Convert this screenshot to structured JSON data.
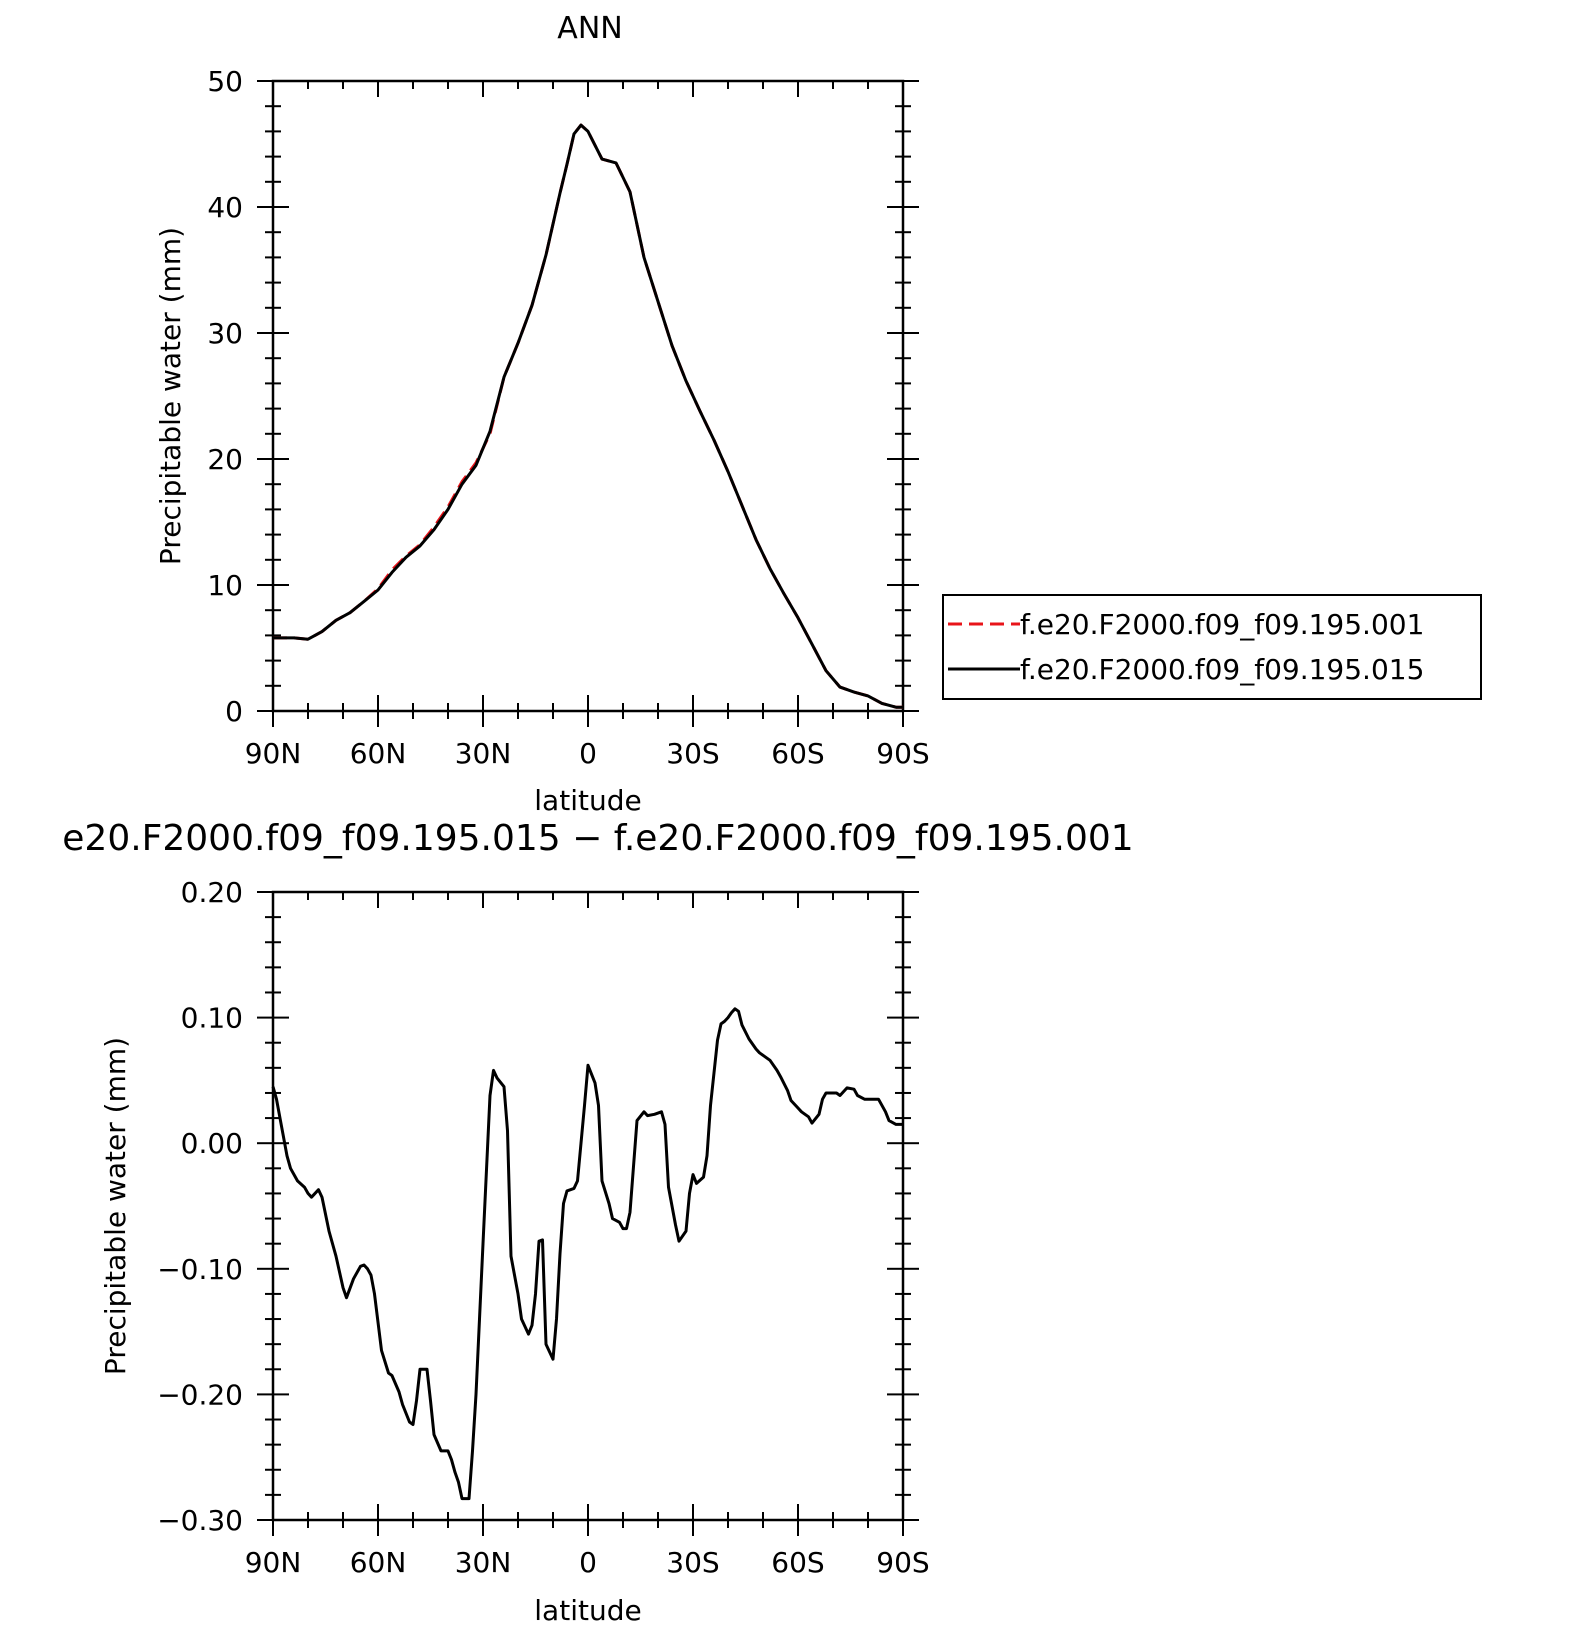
{
  "chart_data": [
    {
      "type": "line",
      "title": "ANN",
      "xlabel": "latitude",
      "ylabel": "Precipitable water (mm)",
      "x_ticks": [
        "90N",
        "60N",
        "30N",
        "0",
        "30S",
        "60S",
        "90S"
      ],
      "y_ticks": [
        "0",
        "10",
        "20",
        "30",
        "40",
        "50"
      ],
      "xlim": [
        -90,
        90
      ],
      "ylim": [
        0,
        50
      ],
      "x_direction": "90N to 90S (left to right)",
      "legend_position": "right",
      "series": [
        {
          "name": "f.e20.F2000.f09_f09.195.001",
          "color": "#e8141a",
          "dash": "dashed",
          "x": [
            -90,
            -84,
            -80,
            -76,
            -72,
            -68,
            -64,
            -60,
            -56,
            -52,
            -48,
            -44,
            -40,
            -36,
            -32,
            -28,
            -24,
            -20,
            -16,
            -12,
            -8,
            -6,
            -4,
            -2,
            0,
            4,
            8,
            12,
            16,
            20,
            24,
            28,
            32,
            36,
            40,
            44,
            48,
            52,
            56,
            60,
            64,
            68,
            72,
            76,
            80,
            84,
            88,
            90
          ],
          "y": [
            5.8,
            5.8,
            5.7,
            6.3,
            7.2,
            7.8,
            8.7,
            9.7,
            11.2,
            12.3,
            13.2,
            14.6,
            16.2,
            18.2,
            19.7,
            22.0,
            26.5,
            29.2,
            32.2,
            36.2,
            41.1,
            43.4,
            45.8,
            46.5,
            46.0,
            43.8,
            43.5,
            41.2,
            36.0,
            32.5,
            29.0,
            26.2,
            23.8,
            21.5,
            19.0,
            16.3,
            13.6,
            11.3,
            9.3,
            7.4,
            5.3,
            3.2,
            1.9,
            1.5,
            1.2,
            0.6,
            0.3,
            0.3
          ]
        },
        {
          "name": "f.e20.F2000.f09_f09.195.015",
          "color": "#000000",
          "dash": "solid",
          "x": [
            -90,
            -84,
            -80,
            -76,
            -72,
            -68,
            -64,
            -60,
            -56,
            -52,
            -48,
            -44,
            -40,
            -36,
            -32,
            -28,
            -24,
            -20,
            -16,
            -12,
            -8,
            -6,
            -4,
            -2,
            0,
            4,
            8,
            12,
            16,
            20,
            24,
            28,
            32,
            36,
            40,
            44,
            48,
            52,
            56,
            60,
            64,
            68,
            72,
            76,
            80,
            84,
            88,
            90
          ],
          "y": [
            5.8,
            5.8,
            5.7,
            6.3,
            7.2,
            7.8,
            8.7,
            9.6,
            11.0,
            12.2,
            13.1,
            14.4,
            16.0,
            18.0,
            19.5,
            22.2,
            26.5,
            29.2,
            32.2,
            36.2,
            41.1,
            43.4,
            45.8,
            46.5,
            46.0,
            43.8,
            43.5,
            41.2,
            36.0,
            32.5,
            29.0,
            26.2,
            23.8,
            21.5,
            19.0,
            16.3,
            13.6,
            11.3,
            9.3,
            7.4,
            5.3,
            3.2,
            1.9,
            1.5,
            1.2,
            0.6,
            0.3,
            0.3
          ]
        }
      ]
    },
    {
      "type": "line",
      "title": "e20.F2000.f09_f09.195.015 − f.e20.F2000.f09_f09.195.001",
      "xlabel": "latitude",
      "ylabel": "Precipitable water (mm)",
      "x_ticks": [
        "90N",
        "60N",
        "30N",
        "0",
        "30S",
        "60S",
        "90S"
      ],
      "y_ticks": [
        "0.20",
        "0.10",
        "0.00",
        "−0.10",
        "−0.20",
        "−0.30"
      ],
      "xlim": [
        -90,
        90
      ],
      "ylim": [
        -0.3,
        0.2
      ],
      "series": [
        {
          "color": "#000000",
          "x": [
            -90,
            -89,
            -88,
            -86,
            -85,
            -83,
            -81,
            -80,
            -79,
            -77,
            -76,
            -74,
            -72,
            -70,
            -69,
            -67,
            -65,
            -64,
            -63,
            -62,
            -61,
            -59,
            -57,
            -56,
            -54,
            -53,
            -51,
            -50,
            -49,
            -48,
            -46,
            -45,
            -44,
            -42,
            -40,
            -39,
            -38,
            -37,
            -36,
            -34,
            -33,
            -32,
            -31,
            -30,
            -28,
            -27,
            -26,
            -24,
            -23,
            -22,
            -20,
            -19,
            -17,
            -16,
            -15,
            -14,
            -13,
            -12,
            -10,
            -9,
            -8,
            -7,
            -6,
            -4,
            -3,
            -1,
            0,
            2,
            3,
            4,
            6,
            7,
            9,
            10,
            11,
            12,
            14,
            16,
            17,
            19,
            21,
            22,
            23,
            25,
            26,
            28,
            29,
            30,
            31,
            33,
            34,
            35,
            37,
            38,
            39,
            40,
            41,
            42,
            43,
            44,
            46,
            48,
            49,
            51,
            52,
            54,
            55,
            57,
            58,
            60,
            61,
            63,
            64,
            66,
            67,
            68,
            70,
            71,
            72,
            74,
            76,
            77,
            79,
            81,
            83,
            85,
            86,
            88,
            90
          ],
          "y": [
            0.045,
            0.035,
            0.02,
            -0.01,
            -0.02,
            -0.03,
            -0.035,
            -0.04,
            -0.043,
            -0.037,
            -0.043,
            -0.07,
            -0.09,
            -0.115,
            -0.123,
            -0.108,
            -0.098,
            -0.097,
            -0.1,
            -0.105,
            -0.12,
            -0.165,
            -0.183,
            -0.185,
            -0.198,
            -0.208,
            -0.222,
            -0.224,
            -0.205,
            -0.18,
            -0.18,
            -0.205,
            -0.232,
            -0.245,
            -0.245,
            -0.252,
            -0.262,
            -0.27,
            -0.283,
            -0.283,
            -0.245,
            -0.2,
            -0.14,
            -0.08,
            0.038,
            0.058,
            0.052,
            0.045,
            0.01,
            -0.09,
            -0.12,
            -0.14,
            -0.152,
            -0.145,
            -0.12,
            -0.078,
            -0.077,
            -0.16,
            -0.172,
            -0.14,
            -0.088,
            -0.048,
            -0.038,
            -0.036,
            -0.03,
            0.03,
            0.062,
            0.048,
            0.03,
            -0.03,
            -0.048,
            -0.06,
            -0.063,
            -0.068,
            -0.068,
            -0.055,
            0.018,
            0.025,
            0.022,
            0.023,
            0.025,
            0.015,
            -0.035,
            -0.065,
            -0.078,
            -0.07,
            -0.04,
            -0.025,
            -0.032,
            -0.027,
            -0.01,
            0.03,
            0.082,
            0.095,
            0.097,
            0.1,
            0.104,
            0.107,
            0.105,
            0.094,
            0.083,
            0.075,
            0.072,
            0.068,
            0.066,
            0.058,
            0.053,
            0.042,
            0.034,
            0.028,
            0.025,
            0.021,
            0.016,
            0.023,
            0.035,
            0.04,
            0.04,
            0.04,
            0.038,
            0.044,
            0.043,
            0.038,
            0.035,
            0.035,
            0.035,
            0.025,
            0.018,
            0.015,
            0.015
          ]
        }
      ]
    }
  ]
}
